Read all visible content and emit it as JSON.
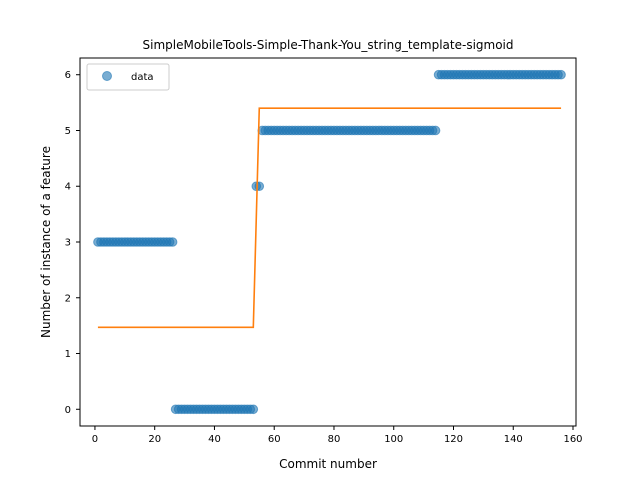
{
  "chart_data": {
    "type": "scatter",
    "title": "SimpleMobileTools-Simple-Thank-You_string_template-sigmoid",
    "xlabel": "Commit number",
    "ylabel": "Number of instance of a feature",
    "xlim": [
      -5,
      161
    ],
    "ylim": [
      -0.3,
      6.3
    ],
    "xticks": [
      0,
      20,
      40,
      60,
      80,
      100,
      120,
      140,
      160
    ],
    "yticks": [
      0,
      1,
      2,
      3,
      4,
      5,
      6
    ],
    "grid": false,
    "legend": {
      "position": "top-left",
      "entries": [
        "data"
      ]
    },
    "series": [
      {
        "name": "data",
        "kind": "scatter",
        "color": "#1f77b4",
        "segments": [
          {
            "x_start": 1,
            "x_end": 26,
            "y": 3
          },
          {
            "x_start": 27,
            "x_end": 53,
            "y": 0
          },
          {
            "x_start": 54,
            "x_end": 55,
            "y": 4
          },
          {
            "x_start": 56,
            "x_end": 114,
            "y": 5
          },
          {
            "x_start": 115,
            "x_end": 156,
            "y": 6
          }
        ]
      },
      {
        "kind": "line",
        "color": "#ff7f0e",
        "points": [
          [
            1,
            1.47
          ],
          [
            53,
            1.47
          ],
          [
            55,
            5.4
          ],
          [
            156,
            5.4
          ]
        ]
      }
    ]
  }
}
